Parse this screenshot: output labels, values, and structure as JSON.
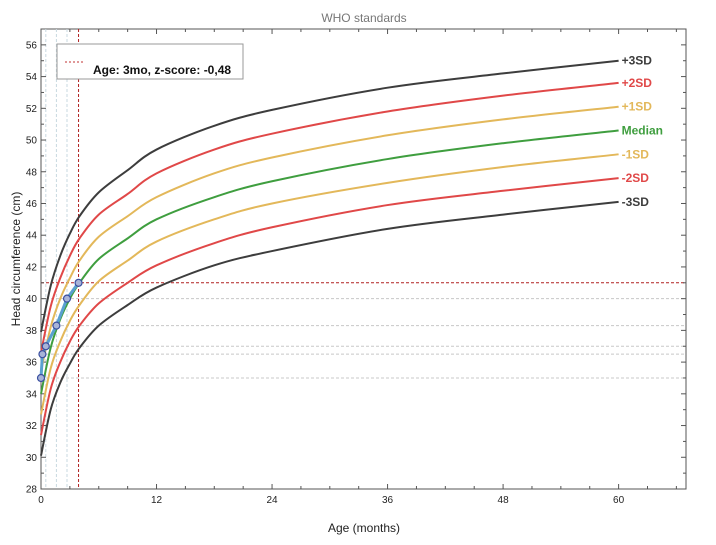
{
  "chart_data": {
    "type": "line",
    "title": "WHO standards",
    "xlabel": "Age (months)",
    "ylabel": "Head circumference (cm)",
    "xlim": [
      0,
      67
    ],
    "ylim": [
      28,
      57
    ],
    "x_ticks": [
      0,
      12,
      24,
      36,
      48,
      60
    ],
    "y_ticks": [
      28,
      30,
      32,
      34,
      36,
      38,
      40,
      42,
      44,
      46,
      48,
      50,
      52,
      54,
      56
    ],
    "legend": {
      "label": "Age: 3mo, z-score: -0,48",
      "position": "top-left",
      "line_color": "#c03030"
    },
    "crosshair": {
      "x": 3.9,
      "y": 41.0,
      "color": "#b02020"
    },
    "reference_lines_y": [
      41.0,
      40.0,
      38.3,
      37.0,
      36.5,
      35.0
    ],
    "reference_lines_x": [
      0.5,
      1.6,
      2.7,
      3.9
    ],
    "series": [
      {
        "name": "+3SD",
        "color": "#3d3d3d",
        "x": [
          0,
          1,
          2,
          3,
          4,
          6,
          9,
          12,
          18,
          24,
          36,
          48,
          60
        ],
        "values": [
          37.9,
          40.8,
          42.7,
          44.1,
          45.2,
          46.7,
          48.1,
          49.4,
          50.9,
          51.9,
          53.3,
          54.2,
          55.0
        ]
      },
      {
        "name": "+2SD",
        "color": "#e04848",
        "x": [
          0,
          1,
          2,
          3,
          4,
          6,
          9,
          12,
          18,
          24,
          36,
          48,
          60
        ],
        "values": [
          36.6,
          39.5,
          41.3,
          42.7,
          43.8,
          45.3,
          46.6,
          47.9,
          49.4,
          50.4,
          51.8,
          52.8,
          53.6
        ]
      },
      {
        "name": "+1SD",
        "color": "#e3b85a",
        "x": [
          0,
          1,
          2,
          3,
          4,
          6,
          9,
          12,
          18,
          24,
          36,
          48,
          60
        ],
        "values": [
          35.4,
          38.2,
          40.0,
          41.3,
          42.4,
          43.9,
          45.2,
          46.4,
          47.9,
          48.9,
          50.3,
          51.3,
          52.1
        ]
      },
      {
        "name": "Median",
        "color": "#3f9e3f",
        "x": [
          0,
          1,
          2,
          3,
          4,
          6,
          9,
          12,
          18,
          24,
          36,
          48,
          60
        ],
        "values": [
          34.0,
          36.9,
          38.7,
          40.0,
          41.0,
          42.5,
          43.8,
          45.0,
          46.4,
          47.4,
          48.8,
          49.8,
          50.6
        ]
      },
      {
        "name": "-1SD",
        "color": "#e3b85a",
        "x": [
          0,
          1,
          2,
          3,
          4,
          6,
          9,
          12,
          18,
          24,
          36,
          48,
          60
        ],
        "values": [
          32.7,
          35.6,
          37.3,
          38.6,
          39.6,
          41.1,
          42.4,
          43.6,
          45.0,
          46.0,
          47.3,
          48.3,
          49.1
        ]
      },
      {
        "name": "-2SD",
        "color": "#e04848",
        "x": [
          0,
          1,
          2,
          3,
          4,
          6,
          9,
          12,
          18,
          24,
          36,
          48,
          60
        ],
        "values": [
          31.4,
          34.3,
          36.0,
          37.3,
          38.3,
          39.7,
          41.0,
          42.1,
          43.5,
          44.5,
          45.9,
          46.8,
          47.6
        ]
      },
      {
        "name": "-3SD",
        "color": "#3d3d3d",
        "x": [
          0,
          1,
          2,
          3,
          4,
          6,
          9,
          12,
          18,
          24,
          36,
          48,
          60
        ],
        "values": [
          30.1,
          33.0,
          34.7,
          35.9,
          36.9,
          38.3,
          39.6,
          40.7,
          42.1,
          43.0,
          44.4,
          45.3,
          46.1
        ]
      }
    ],
    "patient": {
      "color": "#3a4fa0",
      "line_color": "#5aa0d0",
      "x": [
        0.0,
        0.15,
        0.5,
        1.6,
        2.7,
        3.9
      ],
      "values": [
        35.0,
        36.5,
        37.0,
        38.3,
        40.0,
        41.0
      ]
    }
  }
}
